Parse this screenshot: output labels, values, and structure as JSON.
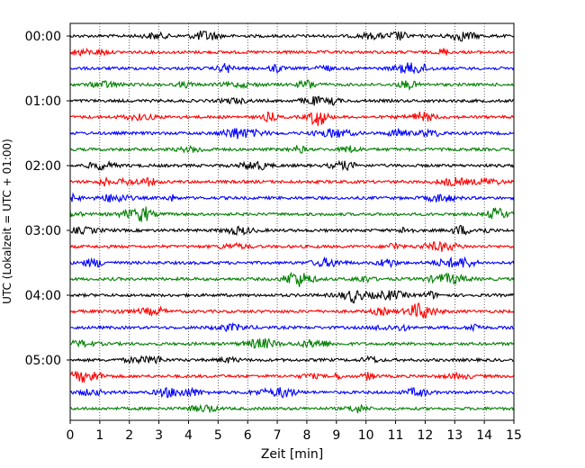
{
  "chart_data": {
    "type": "line",
    "title": "",
    "xlabel": "Zeit  [min]",
    "ylabel": "UTC (Lokalzeit = UTC + 01:00)",
    "xlim": [
      0,
      15
    ],
    "x_ticks": [
      "0",
      "1",
      "2",
      "3",
      "4",
      "5",
      "6",
      "7",
      "8",
      "9",
      "10",
      "11",
      "12",
      "13",
      "14",
      "15"
    ],
    "y_ticks": [
      "00:00",
      "01:00",
      "02:00",
      "03:00",
      "04:00",
      "05:00"
    ],
    "grid": "vertical dotted lines at each minute",
    "trace_interval_minutes": 15,
    "trace_count": 24,
    "trace_colors": [
      "#000000",
      "#ff0000",
      "#0000ff",
      "#008000"
    ],
    "series": [
      {
        "start": "00:00",
        "color": "#000000"
      },
      {
        "start": "00:15",
        "color": "#ff0000"
      },
      {
        "start": "00:30",
        "color": "#0000ff"
      },
      {
        "start": "00:45",
        "color": "#008000"
      },
      {
        "start": "01:00",
        "color": "#000000"
      },
      {
        "start": "01:15",
        "color": "#ff0000"
      },
      {
        "start": "01:30",
        "color": "#0000ff"
      },
      {
        "start": "01:45",
        "color": "#008000"
      },
      {
        "start": "02:00",
        "color": "#000000"
      },
      {
        "start": "02:15",
        "color": "#ff0000"
      },
      {
        "start": "02:30",
        "color": "#0000ff"
      },
      {
        "start": "02:45",
        "color": "#008000"
      },
      {
        "start": "03:00",
        "color": "#000000"
      },
      {
        "start": "03:15",
        "color": "#ff0000"
      },
      {
        "start": "03:30",
        "color": "#0000ff"
      },
      {
        "start": "03:45",
        "color": "#008000"
      },
      {
        "start": "04:00",
        "color": "#000000"
      },
      {
        "start": "04:15",
        "color": "#ff0000"
      },
      {
        "start": "04:30",
        "color": "#0000ff"
      },
      {
        "start": "04:45",
        "color": "#008000"
      },
      {
        "start": "05:00",
        "color": "#000000"
      },
      {
        "start": "05:15",
        "color": "#ff0000"
      },
      {
        "start": "05:30",
        "color": "#0000ff"
      },
      {
        "start": "05:45",
        "color": "#008000"
      }
    ]
  }
}
